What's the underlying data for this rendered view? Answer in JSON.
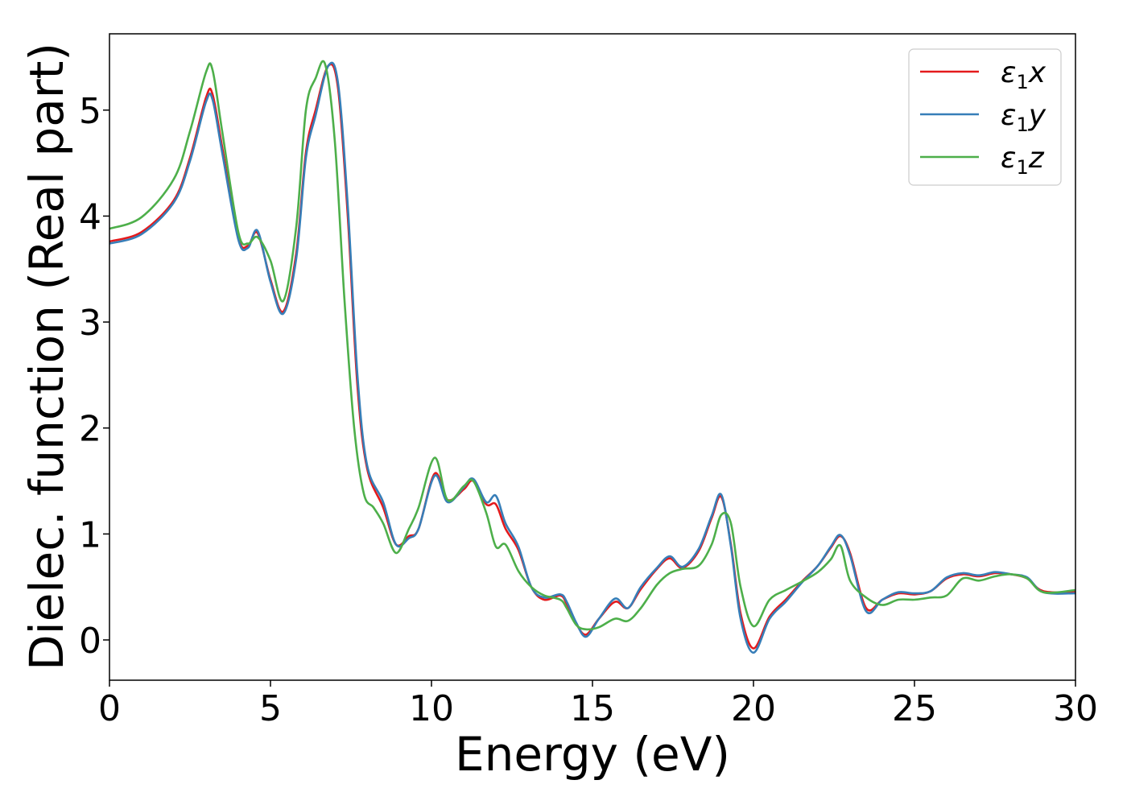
{
  "chart_data": {
    "type": "line",
    "title": "",
    "xlabel": "Energy (eV)",
    "ylabel": "Dielec. function (Real part)",
    "xlim": [
      0,
      30
    ],
    "ylim": [
      -0.38,
      5.72
    ],
    "xticks": [
      0,
      5,
      10,
      15,
      20,
      25,
      30
    ],
    "yticks": [
      0,
      1,
      2,
      3,
      4,
      5
    ],
    "grid": false,
    "legend_position": "top-right",
    "series": [
      {
        "name": "ε1x",
        "legend_base": "ε",
        "legend_sub": "1",
        "legend_tail": "x",
        "color": "#e41a1c",
        "x": [
          0,
          1,
          2,
          2.5,
          3,
          3.2,
          3.5,
          4,
          4.3,
          4.6,
          5,
          5.4,
          5.8,
          6.1,
          6.4,
          6.8,
          7.1,
          7.4,
          7.7,
          8,
          8.5,
          8.9,
          9.3,
          9.6,
          10.1,
          10.5,
          11,
          11.3,
          11.7,
          12,
          12.3,
          12.7,
          13.1,
          13.5,
          14,
          14.2,
          14.5,
          14.8,
          15.2,
          15.7,
          16.1,
          16.5,
          17,
          17.4,
          17.8,
          18.3,
          18.7,
          19,
          19.3,
          19.6,
          20,
          20.5,
          21,
          21.5,
          22,
          22.4,
          22.7,
          23,
          23.5,
          24,
          24.5,
          25,
          25.5,
          26,
          26.5,
          27,
          27.5,
          28,
          28.5,
          29,
          30
        ],
        "y": [
          3.76,
          3.85,
          4.15,
          4.55,
          5.12,
          5.15,
          4.65,
          3.8,
          3.72,
          3.84,
          3.4,
          3.1,
          3.65,
          4.6,
          5.0,
          5.42,
          5.2,
          4.0,
          2.4,
          1.62,
          1.25,
          0.9,
          0.98,
          1.05,
          1.57,
          1.32,
          1.42,
          1.5,
          1.28,
          1.28,
          1.05,
          0.85,
          0.5,
          0.38,
          0.42,
          0.34,
          0.15,
          0.05,
          0.2,
          0.36,
          0.3,
          0.48,
          0.67,
          0.77,
          0.68,
          0.84,
          1.15,
          1.35,
          0.9,
          0.25,
          -0.08,
          0.22,
          0.38,
          0.55,
          0.7,
          0.87,
          0.98,
          0.82,
          0.3,
          0.38,
          0.44,
          0.43,
          0.46,
          0.58,
          0.62,
          0.6,
          0.63,
          0.62,
          0.58,
          0.46,
          0.45
        ]
      },
      {
        "name": "ε1y",
        "legend_base": "ε",
        "legend_sub": "1",
        "legend_tail": "y",
        "color": "#377eb8",
        "x": [
          0,
          1,
          2,
          2.5,
          3,
          3.2,
          3.5,
          4,
          4.3,
          4.6,
          5,
          5.4,
          5.8,
          6.1,
          6.4,
          6.8,
          7.1,
          7.4,
          7.7,
          8,
          8.5,
          8.9,
          9.3,
          9.6,
          10.1,
          10.5,
          11,
          11.3,
          11.7,
          12,
          12.3,
          12.7,
          13.1,
          13.5,
          14,
          14.2,
          14.5,
          14.8,
          15.2,
          15.7,
          16.1,
          16.5,
          17,
          17.4,
          17.8,
          18.3,
          18.7,
          19,
          19.3,
          19.6,
          20,
          20.5,
          21,
          21.5,
          22,
          22.4,
          22.7,
          23,
          23.5,
          24,
          24.5,
          25,
          25.5,
          26,
          26.5,
          27,
          27.5,
          28,
          28.5,
          29,
          30
        ],
        "y": [
          3.74,
          3.83,
          4.13,
          4.52,
          5.08,
          5.1,
          4.6,
          3.78,
          3.7,
          3.86,
          3.38,
          3.08,
          3.6,
          4.55,
          4.95,
          5.42,
          5.25,
          4.1,
          2.5,
          1.65,
          1.3,
          0.9,
          0.96,
          1.05,
          1.55,
          1.3,
          1.44,
          1.52,
          1.3,
          1.36,
          1.1,
          0.88,
          0.5,
          0.4,
          0.43,
          0.36,
          0.16,
          0.03,
          0.2,
          0.39,
          0.3,
          0.5,
          0.68,
          0.79,
          0.69,
          0.86,
          1.17,
          1.37,
          0.88,
          0.2,
          -0.12,
          0.2,
          0.36,
          0.54,
          0.7,
          0.88,
          0.99,
          0.8,
          0.27,
          0.38,
          0.45,
          0.44,
          0.46,
          0.59,
          0.63,
          0.61,
          0.64,
          0.62,
          0.59,
          0.45,
          0.44
        ]
      },
      {
        "name": "ε1z",
        "legend_base": "ε",
        "legend_sub": "1",
        "legend_tail": "z",
        "color": "#4daf4a",
        "x": [
          0,
          1,
          2,
          2.5,
          3,
          3.2,
          3.5,
          4,
          4.3,
          4.6,
          5,
          5.4,
          5.8,
          6.1,
          6.4,
          6.7,
          7,
          7.3,
          7.6,
          7.9,
          8.2,
          8.5,
          8.9,
          9.3,
          9.6,
          10.1,
          10.5,
          11,
          11.3,
          11.7,
          12,
          12.3,
          12.7,
          13.1,
          13.5,
          14,
          14.2,
          14.5,
          14.8,
          15.2,
          15.7,
          16.1,
          16.5,
          17,
          17.4,
          17.8,
          18.3,
          18.7,
          19,
          19.3,
          19.6,
          20,
          20.5,
          21,
          21.5,
          22,
          22.4,
          22.7,
          23,
          23.5,
          24,
          24.5,
          25,
          25.5,
          26,
          26.5,
          27,
          27.5,
          28,
          28.5,
          29,
          30
        ],
        "y": [
          3.88,
          3.99,
          4.35,
          4.8,
          5.36,
          5.38,
          4.8,
          3.85,
          3.74,
          3.8,
          3.58,
          3.2,
          3.9,
          5.0,
          5.3,
          5.43,
          4.7,
          3.2,
          2.0,
          1.38,
          1.25,
          1.1,
          0.82,
          1.05,
          1.25,
          1.72,
          1.32,
          1.45,
          1.5,
          1.2,
          0.88,
          0.9,
          0.65,
          0.5,
          0.42,
          0.38,
          0.3,
          0.14,
          0.1,
          0.12,
          0.2,
          0.18,
          0.3,
          0.52,
          0.63,
          0.67,
          0.7,
          0.9,
          1.18,
          1.1,
          0.5,
          0.13,
          0.38,
          0.47,
          0.55,
          0.64,
          0.76,
          0.89,
          0.56,
          0.4,
          0.33,
          0.38,
          0.38,
          0.4,
          0.42,
          0.58,
          0.56,
          0.6,
          0.62,
          0.58,
          0.45,
          0.47
        ]
      }
    ]
  }
}
